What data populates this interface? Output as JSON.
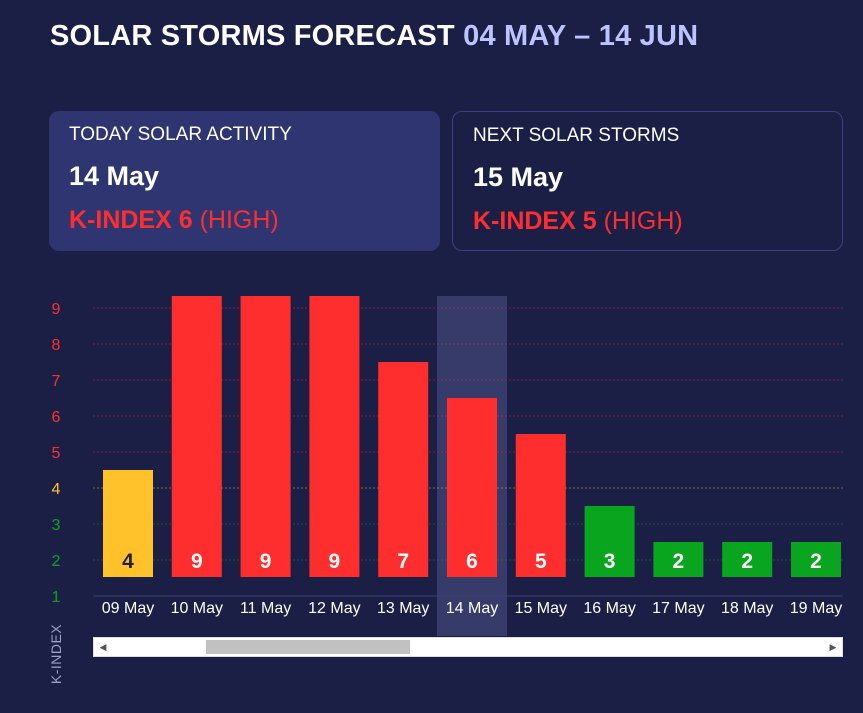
{
  "header": {
    "title": "SOLAR STORMS FORECAST",
    "range": "04 MAY – 14 JUN"
  },
  "today_card": {
    "label": "TODAY SOLAR ACTIVITY",
    "date": "14 May",
    "index_text": "K-INDEX 6",
    "level": "(HIGH)"
  },
  "next_card": {
    "label": "NEXT SOLAR STORMS",
    "date": "15 May",
    "index_text": "K-INDEX 5",
    "level": "(HIGH)"
  },
  "colors": {
    "background": "#1c1f45",
    "high": "#ff2e2e",
    "moderate": "#ffc22a",
    "low": "#0aa51e",
    "highlight": "#363b69"
  },
  "chart_data": {
    "type": "bar",
    "title": "",
    "xlabel": "",
    "ylabel": "K-INDEX",
    "ylim": [
      1,
      9
    ],
    "yticks": [
      1,
      2,
      3,
      4,
      5,
      6,
      7,
      8,
      9
    ],
    "grid": true,
    "highlight_category": "14 May",
    "categories": [
      "09 May",
      "10 May",
      "11 May",
      "12 May",
      "13 May",
      "14 May",
      "15 May",
      "16 May",
      "17 May",
      "18 May",
      "19 May"
    ],
    "values": [
      4,
      9,
      9,
      9,
      7,
      6,
      5,
      3,
      2,
      2,
      2
    ]
  },
  "scrollbar": {
    "left_arrow": "◀",
    "right_arrow": "▶"
  }
}
